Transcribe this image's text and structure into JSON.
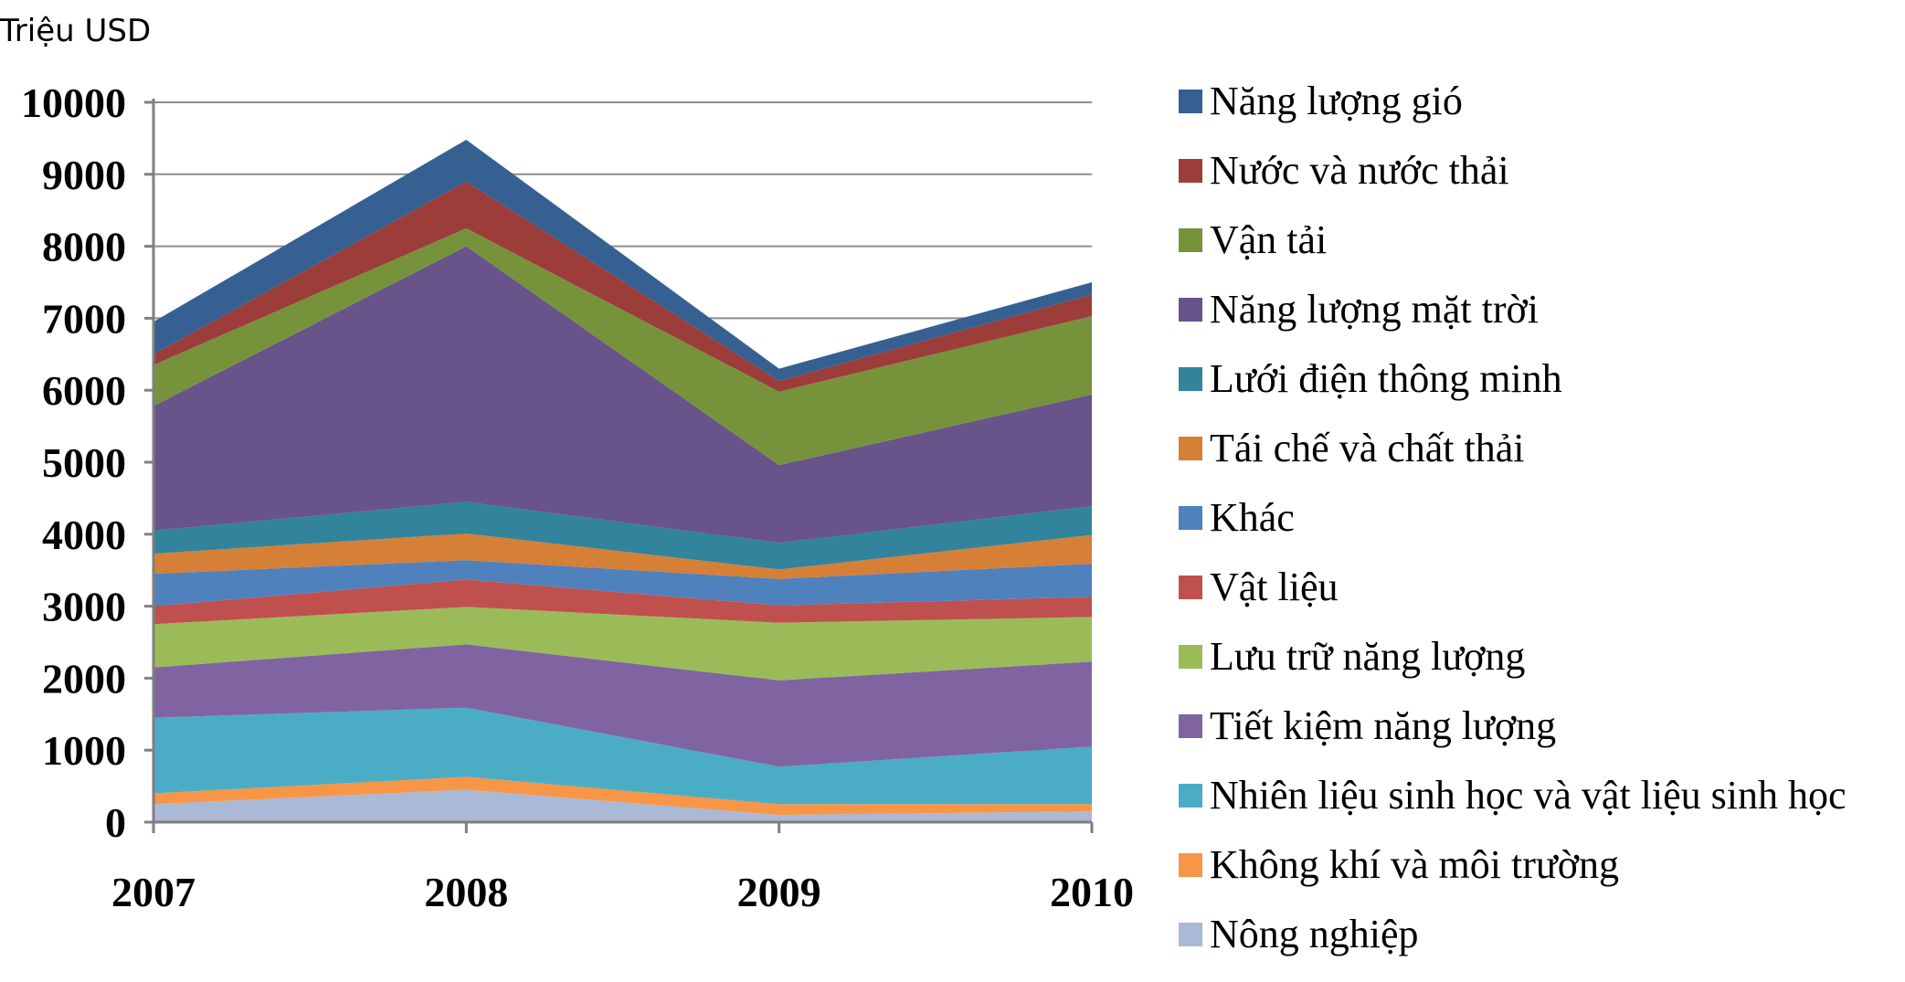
{
  "chart_data": {
    "type": "area",
    "stacked": true,
    "title": "",
    "ylabel": "Triệu USD",
    "xlabel": "",
    "categories": [
      "2007",
      "2008",
      "2009",
      "2010"
    ],
    "ylim": [
      0,
      10000
    ],
    "yticks": [
      0,
      1000,
      2000,
      3000,
      4000,
      5000,
      6000,
      7000,
      8000,
      9000,
      10000
    ],
    "grid": true,
    "legend_position": "right",
    "series": [
      {
        "name": "Nông nghiệp",
        "color": "#A9B9D6",
        "values": [
          250,
          450,
          100,
          150
        ]
      },
      {
        "name": "Không khí và môi trường",
        "color": "#F79646",
        "values": [
          150,
          180,
          150,
          100
        ]
      },
      {
        "name": "Nhiên liệu sinh học và vật liệu sinh học",
        "color": "#4BACC6",
        "values": [
          1050,
          960,
          520,
          800
        ]
      },
      {
        "name": "Tiết kiệm năng lượng",
        "color": "#8064A2",
        "values": [
          700,
          880,
          1200,
          1180
        ]
      },
      {
        "name": "Lưu trữ năng lượng",
        "color": "#9BBB59",
        "values": [
          600,
          520,
          800,
          620
        ]
      },
      {
        "name": "Vật liệu",
        "color": "#C0504D",
        "values": [
          250,
          380,
          240,
          280
        ]
      },
      {
        "name": "Khác",
        "color": "#4F81BD",
        "values": [
          450,
          270,
          370,
          460
        ]
      },
      {
        "name": "Tái chế và chất thải",
        "color": "#D67F37",
        "values": [
          280,
          370,
          130,
          400
        ]
      },
      {
        "name": "Lưới điện thông minh",
        "color": "#31849B",
        "values": [
          320,
          440,
          370,
          400
        ]
      },
      {
        "name": "Năng lượng mặt trời",
        "color": "#68538A",
        "values": [
          1730,
          3550,
          1080,
          1550
        ]
      },
      {
        "name": "Vận tải",
        "color": "#76933C",
        "values": [
          570,
          250,
          1020,
          1090
        ]
      },
      {
        "name": "Nước và nước thải",
        "color": "#9C3D3A",
        "values": [
          150,
          650,
          150,
          300
        ]
      },
      {
        "name": "Năng lượng gió",
        "color": "#366092",
        "values": [
          450,
          580,
          170,
          170
        ]
      }
    ]
  }
}
